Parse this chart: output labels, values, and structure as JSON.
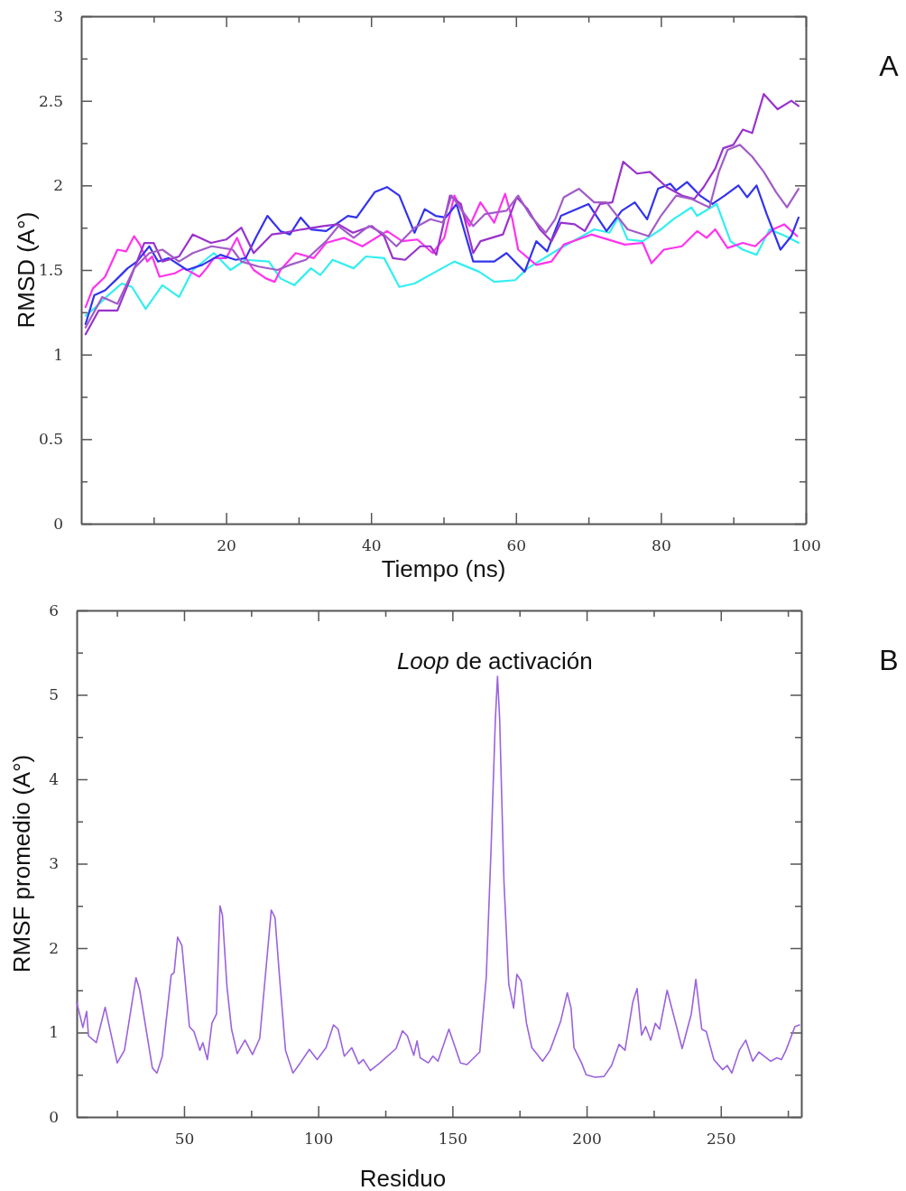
{
  "chart_data": [
    {
      "type": "line",
      "xlabel": "Tiempo (ns)",
      "ylabel": "RMSD (A°)",
      "annotations": [
        "A"
      ],
      "xlim": [
        0,
        100
      ],
      "ylim": [
        0,
        3
      ],
      "xticks": [
        {
          "value": 10,
          "label": null
        },
        20,
        {
          "value": 30,
          "label": null
        },
        40,
        {
          "value": 50,
          "label": null
        },
        60,
        {
          "value": 70,
          "label": null
        },
        80,
        {
          "value": 90,
          "label": null
        },
        100
      ],
      "yticks": [
        0,
        {
          "value": 0.25,
          "label": null
        },
        0.5,
        {
          "value": 0.75,
          "label": null
        },
        1,
        {
          "value": 1.25,
          "label": null
        },
        1.5,
        {
          "value": 1.75,
          "label": null
        },
        2,
        {
          "value": 2.25,
          "label": null
        },
        2.5,
        {
          "value": 2.75,
          "label": null
        },
        3
      ],
      "series": [
        {
          "color": "#33eef0",
          "x": [
            0.6,
            2.0,
            3.7,
            5.6,
            7.0,
            8.9,
            11.2,
            13.5,
            15.4,
            18.3,
            20.6,
            22.7,
            25.9,
            27.5,
            29.4,
            31.7,
            33,
            34.7,
            37.6,
            39.3,
            41.8,
            43.9,
            46,
            48.1,
            51.5,
            54.9,
            57,
            59.9,
            61.6,
            65.8,
            70.8,
            72.9,
            74.1,
            75.4,
            77.5,
            80,
            81.7,
            84.2,
            85,
            87.7,
            89.6,
            91.3,
            93.2,
            95,
            97.2,
            99
          ],
          "values": [
            1.23,
            1.28,
            1.35,
            1.42,
            1.4,
            1.27,
            1.41,
            1.34,
            1.5,
            1.6,
            1.5,
            1.56,
            1.55,
            1.45,
            1.41,
            1.51,
            1.47,
            1.56,
            1.51,
            1.58,
            1.57,
            1.4,
            1.42,
            1.47,
            1.55,
            1.49,
            1.43,
            1.44,
            1.51,
            1.62,
            1.74,
            1.72,
            1.81,
            1.68,
            1.67,
            1.74,
            1.8,
            1.87,
            1.82,
            1.89,
            1.67,
            1.62,
            1.59,
            1.74,
            1.7,
            1.66
          ]
        },
        {
          "color": "#ff33ee",
          "x": [
            0.6,
            1.6,
            3.3,
            5,
            6.2,
            7.3,
            8.1,
            9.1,
            9.8,
            10.8,
            12.9,
            14.2,
            16.3,
            17.3,
            18.3,
            20,
            21.5,
            22.7,
            23.8,
            25.5,
            26.7,
            27.5,
            29.6,
            32.1,
            33.8,
            36.3,
            38.8,
            42.2,
            44.3,
            46.4,
            48.5,
            50.1,
            51.5,
            53.6,
            55.1,
            57,
            58.5,
            59.5,
            60.3,
            62.8,
            64.9,
            66.6,
            70.4,
            75,
            77.5,
            78.7,
            80.4,
            82.9,
            85,
            86.3,
            87.5,
            89.2,
            91.3,
            93,
            95.5,
            97,
            98.8
          ],
          "values": [
            1.28,
            1.39,
            1.46,
            1.62,
            1.61,
            1.7,
            1.65,
            1.55,
            1.58,
            1.46,
            1.48,
            1.51,
            1.46,
            1.51,
            1.57,
            1.57,
            1.69,
            1.57,
            1.5,
            1.45,
            1.43,
            1.5,
            1.6,
            1.57,
            1.66,
            1.69,
            1.64,
            1.73,
            1.67,
            1.68,
            1.6,
            1.69,
            1.94,
            1.76,
            1.9,
            1.78,
            1.95,
            1.8,
            1.62,
            1.53,
            1.55,
            1.65,
            1.71,
            1.65,
            1.66,
            1.54,
            1.62,
            1.64,
            1.73,
            1.69,
            1.74,
            1.63,
            1.66,
            1.64,
            1.74,
            1.77,
            1.7
          ]
        },
        {
          "color": "#3333ee",
          "x": [
            0.6,
            1.8,
            3.3,
            5,
            6.4,
            7.7,
            9.4,
            10.6,
            12.1,
            14.6,
            16.7,
            19.2,
            21.3,
            22.7,
            24.2,
            25.7,
            27.5,
            28.8,
            30.3,
            31.7,
            33.8,
            36.8,
            38,
            40.5,
            42.2,
            43.9,
            46,
            47.4,
            48.9,
            50.3,
            51.8,
            54.1,
            57,
            58.7,
            61.2,
            62.8,
            64.3,
            66.2,
            70,
            72.5,
            74.6,
            76.4,
            78.1,
            79.6,
            81.3,
            82.1,
            83.6,
            85.4,
            87.1,
            88.8,
            90.7,
            91.9,
            93.2,
            94.6,
            96.5,
            98,
            99
          ],
          "values": [
            1.18,
            1.35,
            1.38,
            1.45,
            1.51,
            1.55,
            1.64,
            1.55,
            1.57,
            1.5,
            1.53,
            1.59,
            1.56,
            1.57,
            1.7,
            1.82,
            1.73,
            1.71,
            1.81,
            1.74,
            1.73,
            1.82,
            1.81,
            1.96,
            1.99,
            1.94,
            1.72,
            1.86,
            1.82,
            1.81,
            1.89,
            1.55,
            1.55,
            1.6,
            1.49,
            1.67,
            1.61,
            1.82,
            1.89,
            1.73,
            1.85,
            1.9,
            1.8,
            1.98,
            2.01,
            1.97,
            2.02,
            1.94,
            1.89,
            1.94,
            2.0,
            1.93,
            2.0,
            1.83,
            1.62,
            1.7,
            1.81
          ]
        },
        {
          "color": "#9933cc",
          "x": [
            0.6,
            2.4,
            5,
            6.6,
            8.7,
            10,
            11.2,
            13.5,
            15.4,
            17.9,
            20,
            22.1,
            23.8,
            26.3,
            28,
            30.5,
            33.4,
            35.5,
            37.5,
            40.1,
            41.8,
            43,
            44.7,
            46.8,
            48.2,
            49,
            50.9,
            52.4,
            54.1,
            55.1,
            58.2,
            60.1,
            61.6,
            63.3,
            64.9,
            66.2,
            68.1,
            69.5,
            71.6,
            73.3,
            74.8,
            76.7,
            78.5,
            80.8,
            82.9,
            84.6,
            85.9,
            87.5,
            88.6,
            90,
            91.3,
            92.6,
            94.2,
            96.1,
            98,
            99
          ],
          "values": [
            1.12,
            1.26,
            1.26,
            1.43,
            1.66,
            1.66,
            1.55,
            1.58,
            1.71,
            1.66,
            1.68,
            1.75,
            1.6,
            1.71,
            1.72,
            1.74,
            1.76,
            1.77,
            1.72,
            1.76,
            1.7,
            1.57,
            1.56,
            1.64,
            1.64,
            1.59,
            1.94,
            1.89,
            1.6,
            1.67,
            1.71,
            1.93,
            1.86,
            1.74,
            1.67,
            1.78,
            1.77,
            1.73,
            1.89,
            1.9,
            2.14,
            2.07,
            2.08,
            1.99,
            1.94,
            1.92,
            1.99,
            2.1,
            2.22,
            2.24,
            2.33,
            2.31,
            2.54,
            2.45,
            2.5,
            2.47
          ]
        },
        {
          "color": "#a25cc8",
          "x": [
            0.6,
            2.9,
            5,
            7.3,
            9.4,
            11.2,
            13.5,
            15.4,
            18,
            20.9,
            22.1,
            24.5,
            27.1,
            28.8,
            31,
            33.8,
            35.5,
            37.6,
            39.7,
            41.5,
            43.5,
            46,
            48.2,
            49.9,
            51.1,
            54.1,
            55.7,
            58.7,
            60.3,
            62,
            64.1,
            65.4,
            66.6,
            68.7,
            70.8,
            72.5,
            75.4,
            78.3,
            80,
            82.1,
            84.2,
            86.7,
            88,
            89.2,
            90.9,
            92.6,
            94.2,
            95.9,
            97.4,
            99
          ],
          "values": [
            1.16,
            1.34,
            1.3,
            1.51,
            1.6,
            1.62,
            1.55,
            1.6,
            1.64,
            1.62,
            1.55,
            1.52,
            1.5,
            1.53,
            1.56,
            1.67,
            1.76,
            1.69,
            1.76,
            1.72,
            1.64,
            1.75,
            1.8,
            1.78,
            1.94,
            1.76,
            1.83,
            1.85,
            1.94,
            1.82,
            1.72,
            1.8,
            1.93,
            1.98,
            1.9,
            1.9,
            1.74,
            1.7,
            1.82,
            1.94,
            1.92,
            1.87,
            2.08,
            2.21,
            2.24,
            2.17,
            2.08,
            1.96,
            1.87,
            1.98
          ]
        }
      ]
    },
    {
      "type": "line",
      "xlabel": "Residuo",
      "ylabel": "RMSF promedio (A°)",
      "xlim": [
        10,
        280
      ],
      "ylim": [
        0,
        6
      ],
      "annotations": [
        {
          "text": "Loop de activación",
          "x": 166.8,
          "y": 5.22
        },
        "B"
      ],
      "xticks": [
        {
          "value": 25,
          "label": null
        },
        50,
        {
          "value": 75,
          "label": null
        },
        100,
        {
          "value": 125,
          "label": null
        },
        150,
        {
          "value": 175,
          "label": null
        },
        200,
        {
          "value": 225,
          "label": null
        },
        250,
        {
          "value": 275,
          "label": null
        }
      ],
      "yticks": [
        0,
        {
          "value": 0.5,
          "label": null
        },
        1,
        {
          "value": 1.5,
          "label": null
        },
        2,
        {
          "value": 2.5,
          "label": null
        },
        3,
        {
          "value": 3.5,
          "label": null
        },
        4,
        {
          "value": 4.5,
          "label": null
        },
        5,
        {
          "value": 5.5,
          "label": null
        },
        6
      ],
      "series": [
        {
          "color": "#9b63dc",
          "x": [
            10,
            12.3,
            13.7,
            14.4,
            17.3,
            20.6,
            25.1,
            27.8,
            32.1,
            33.5,
            38.2,
            39.9,
            41.9,
            45.2,
            46.3,
            47.6,
            49.2,
            52,
            53.7,
            55.9,
            57,
            58.7,
            60.4,
            62.1,
            63.4,
            64.3,
            66,
            67.7,
            69.8,
            72.7,
            75.5,
            78.2,
            82.5,
            83.9,
            85.6,
            87.8,
            90.6,
            93.3,
            96.7,
            99.6,
            102.9,
            105.7,
            107.4,
            109.7,
            112.5,
            115.1,
            116.8,
            119.4,
            123,
            129,
            131.4,
            133.2,
            135.6,
            136.8,
            138,
            141,
            142.7,
            144.6,
            148.7,
            153,
            155.4,
            160.2,
            162.6,
            164.4,
            166,
            166.8,
            167.6,
            169.2,
            171,
            172.8,
            174,
            175.6,
            177.6,
            179.6,
            183.6,
            186.4,
            190.3,
            192.8,
            194.2,
            195.3,
            198.1,
            199.8,
            203.1,
            206.5,
            209.3,
            212.1,
            214.3,
            217.2,
            218.8,
            220.5,
            222,
            223.9,
            225.6,
            227.2,
            230,
            232.3,
            235.6,
            239,
            240.7,
            242.9,
            244.6,
            247.4,
            250.7,
            252.4,
            254.1,
            256.9,
            259.3,
            261.9,
            264.2,
            268.6,
            270.9,
            272.6,
            274.3,
            277.6,
            279.3
          ],
          "values": [
            1.36,
            1.06,
            1.25,
            0.96,
            0.88,
            1.3,
            0.64,
            0.79,
            1.65,
            1.5,
            0.58,
            0.52,
            0.72,
            1.68,
            1.71,
            2.13,
            2.03,
            1.07,
            1.01,
            0.79,
            0.88,
            0.68,
            1.11,
            1.22,
            2.5,
            2.39,
            1.54,
            1.04,
            0.75,
            0.91,
            0.74,
            0.93,
            2.45,
            2.36,
            1.65,
            0.79,
            0.52,
            0.64,
            0.8,
            0.68,
            0.82,
            1.09,
            1.04,
            0.72,
            0.82,
            0.63,
            0.68,
            0.55,
            0.64,
            0.81,
            1.02,
            0.96,
            0.73,
            0.9,
            0.7,
            0.64,
            0.72,
            0.66,
            1.04,
            0.64,
            0.62,
            0.77,
            1.65,
            3.18,
            4.71,
            5.22,
            4.71,
            2.79,
            1.57,
            1.29,
            1.69,
            1.61,
            1.11,
            0.82,
            0.66,
            0.79,
            1.13,
            1.47,
            1.29,
            0.82,
            0.64,
            0.5,
            0.47,
            0.48,
            0.61,
            0.86,
            0.79,
            1.36,
            1.52,
            0.97,
            1.07,
            0.91,
            1.11,
            1.04,
            1.5,
            1.22,
            0.81,
            1.22,
            1.63,
            1.04,
            1.01,
            0.68,
            0.56,
            0.61,
            0.52,
            0.79,
            0.91,
            0.66,
            0.77,
            0.66,
            0.7,
            0.68,
            0.79,
            1.07,
            1.09
          ]
        }
      ]
    }
  ]
}
